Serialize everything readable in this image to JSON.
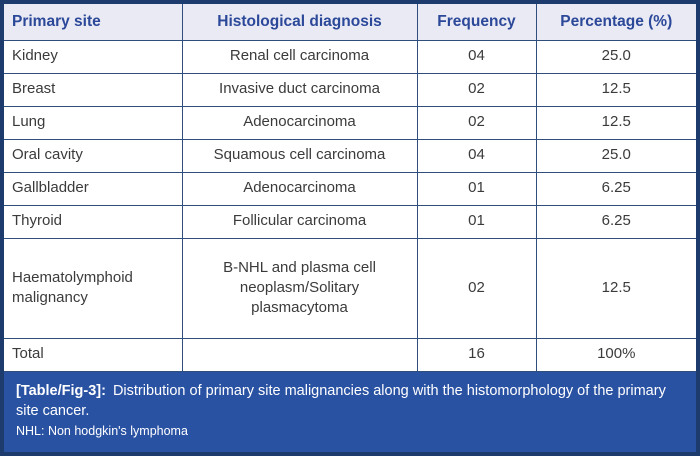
{
  "table": {
    "headers": [
      "Primary site",
      "Histological diagnosis",
      "Frequency",
      "Percentage (%)"
    ],
    "rows": [
      {
        "site": "Kidney",
        "diagnosis": "Renal cell carcinoma",
        "frequency": "04",
        "percentage": "25.0",
        "tall": false
      },
      {
        "site": "Breast",
        "diagnosis": "Invasive duct carcinoma",
        "frequency": "02",
        "percentage": "12.5",
        "tall": false
      },
      {
        "site": "Lung",
        "diagnosis": "Adenocarcinoma",
        "frequency": "02",
        "percentage": "12.5",
        "tall": false
      },
      {
        "site": "Oral cavity",
        "diagnosis": "Squamous cell carcinoma",
        "frequency": "04",
        "percentage": "25.0",
        "tall": false
      },
      {
        "site": "Gallbladder",
        "diagnosis": "Adenocarcinoma",
        "frequency": "01",
        "percentage": "6.25",
        "tall": false
      },
      {
        "site": "Thyroid",
        "diagnosis": "Follicular carcinoma",
        "frequency": "01",
        "percentage": "6.25",
        "tall": false
      },
      {
        "site": "Haematolymphoid malignancy",
        "diagnosis": "B-NHL and plasma cell neoplasm/Solitary plasmacytoma",
        "frequency": "02",
        "percentage": "12.5",
        "tall": true
      },
      {
        "site": "Total",
        "diagnosis": "",
        "frequency": "16",
        "percentage": "100%",
        "tall": false
      }
    ]
  },
  "caption": {
    "label": "[Table/Fig-3]:",
    "text": "Distribution of primary site malignancies along with the histomorphology of the primary site cancer.",
    "footnote": "NHL: Non hodgkin's lymphoma"
  },
  "colors": {
    "frame": "#1d3b6d",
    "cell_border": "#2f4e7c",
    "header_bg": "#e9eaf4",
    "header_text": "#2b4899",
    "body_text": "#3b3b3b",
    "caption_bg": "#2a52a3",
    "caption_text": "#ffffff"
  }
}
